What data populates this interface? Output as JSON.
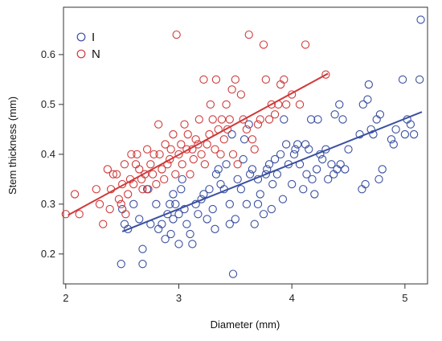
{
  "chart_data": {
    "type": "scatter",
    "xlabel": "Diameter (mm)",
    "ylabel": "Stem thickness (mm)",
    "xlim": [
      1.98,
      5.2
    ],
    "ylim": [
      0.14,
      0.695
    ],
    "xticks": [
      2,
      3,
      4,
      5
    ],
    "yticks": [
      0.2,
      0.3,
      0.4,
      0.5,
      0.6
    ],
    "yticks_labels": [
      "0.2",
      "0.3",
      "0.4",
      "0.5",
      "0.6"
    ],
    "grid": false,
    "legend": "top-left",
    "series": [
      {
        "name": "I",
        "color": "#3a4fa0",
        "marker": "open-circle",
        "trend": [
          [
            2.5,
            0.245
          ],
          [
            5.15,
            0.485
          ]
        ],
        "points": [
          [
            2.49,
            0.18
          ],
          [
            2.5,
            0.29
          ],
          [
            2.52,
            0.26
          ],
          [
            2.55,
            0.25
          ],
          [
            2.6,
            0.3
          ],
          [
            2.65,
            0.27
          ],
          [
            2.68,
            0.18
          ],
          [
            2.68,
            0.21
          ],
          [
            2.72,
            0.33
          ],
          [
            2.75,
            0.26
          ],
          [
            2.8,
            0.3
          ],
          [
            2.82,
            0.25
          ],
          [
            2.85,
            0.26
          ],
          [
            2.88,
            0.23
          ],
          [
            2.9,
            0.28
          ],
          [
            2.92,
            0.3
          ],
          [
            2.93,
            0.24
          ],
          [
            2.95,
            0.27
          ],
          [
            2.95,
            0.32
          ],
          [
            2.97,
            0.3
          ],
          [
            3.0,
            0.22
          ],
          [
            3.0,
            0.28
          ],
          [
            3.02,
            0.33
          ],
          [
            3.03,
            0.35
          ],
          [
            3.05,
            0.29
          ],
          [
            3.07,
            0.26
          ],
          [
            3.1,
            0.24
          ],
          [
            3.12,
            0.22
          ],
          [
            3.15,
            0.3
          ],
          [
            3.17,
            0.28
          ],
          [
            3.2,
            0.31
          ],
          [
            3.22,
            0.32
          ],
          [
            3.25,
            0.27
          ],
          [
            3.27,
            0.33
          ],
          [
            3.3,
            0.29
          ],
          [
            3.32,
            0.25
          ],
          [
            3.33,
            0.36
          ],
          [
            3.35,
            0.37
          ],
          [
            3.37,
            0.34
          ],
          [
            3.4,
            0.33
          ],
          [
            3.42,
            0.38
          ],
          [
            3.45,
            0.3
          ],
          [
            3.45,
            0.26
          ],
          [
            3.47,
            0.44
          ],
          [
            3.48,
            0.16
          ],
          [
            3.5,
            0.27
          ],
          [
            3.52,
            0.35
          ],
          [
            3.55,
            0.33
          ],
          [
            3.57,
            0.39
          ],
          [
            3.58,
            0.43
          ],
          [
            3.6,
            0.3
          ],
          [
            3.62,
            0.46
          ],
          [
            3.63,
            0.36
          ],
          [
            3.65,
            0.37
          ],
          [
            3.67,
            0.26
          ],
          [
            3.7,
            0.3
          ],
          [
            3.7,
            0.35
          ],
          [
            3.72,
            0.32
          ],
          [
            3.75,
            0.28
          ],
          [
            3.77,
            0.36
          ],
          [
            3.78,
            0.37
          ],
          [
            3.8,
            0.38
          ],
          [
            3.82,
            0.29
          ],
          [
            3.83,
            0.34
          ],
          [
            3.85,
            0.39
          ],
          [
            3.87,
            0.36
          ],
          [
            3.9,
            0.4
          ],
          [
            3.92,
            0.31
          ],
          [
            3.93,
            0.47
          ],
          [
            3.95,
            0.42
          ],
          [
            3.97,
            0.38
          ],
          [
            4.0,
            0.34
          ],
          [
            4.02,
            0.4
          ],
          [
            4.03,
            0.41
          ],
          [
            4.05,
            0.42
          ],
          [
            4.07,
            0.38
          ],
          [
            4.1,
            0.33
          ],
          [
            4.12,
            0.42
          ],
          [
            4.13,
            0.36
          ],
          [
            4.15,
            0.41
          ],
          [
            4.17,
            0.47
          ],
          [
            4.18,
            0.35
          ],
          [
            4.2,
            0.32
          ],
          [
            4.22,
            0.37
          ],
          [
            4.23,
            0.47
          ],
          [
            4.25,
            0.4
          ],
          [
            4.27,
            0.39
          ],
          [
            4.3,
            0.41
          ],
          [
            4.32,
            0.35
          ],
          [
            4.35,
            0.38
          ],
          [
            4.37,
            0.36
          ],
          [
            4.38,
            0.48
          ],
          [
            4.4,
            0.37
          ],
          [
            4.42,
            0.5
          ],
          [
            4.43,
            0.38
          ],
          [
            4.45,
            0.47
          ],
          [
            4.47,
            0.37
          ],
          [
            4.5,
            0.41
          ],
          [
            4.6,
            0.44
          ],
          [
            4.62,
            0.33
          ],
          [
            4.63,
            0.5
          ],
          [
            4.65,
            0.34
          ],
          [
            4.67,
            0.51
          ],
          [
            4.68,
            0.54
          ],
          [
            4.7,
            0.45
          ],
          [
            4.72,
            0.44
          ],
          [
            4.75,
            0.47
          ],
          [
            4.77,
            0.35
          ],
          [
            4.78,
            0.48
          ],
          [
            4.8,
            0.37
          ],
          [
            4.88,
            0.43
          ],
          [
            4.9,
            0.42
          ],
          [
            4.92,
            0.45
          ],
          [
            4.98,
            0.55
          ],
          [
            5.0,
            0.44
          ],
          [
            5.02,
            0.47
          ],
          [
            5.05,
            0.46
          ],
          [
            5.08,
            0.44
          ],
          [
            5.13,
            0.55
          ],
          [
            5.14,
            0.67
          ]
        ]
      },
      {
        "name": "N",
        "color": "#d03a3a",
        "marker": "open-circle",
        "trend": [
          [
            2.02,
            0.278
          ],
          [
            4.32,
            0.562
          ]
        ],
        "points": [
          [
            2.0,
            0.28
          ],
          [
            2.08,
            0.32
          ],
          [
            2.12,
            0.28
          ],
          [
            2.27,
            0.33
          ],
          [
            2.3,
            0.3
          ],
          [
            2.33,
            0.26
          ],
          [
            2.37,
            0.37
          ],
          [
            2.39,
            0.29
          ],
          [
            2.4,
            0.33
          ],
          [
            2.42,
            0.36
          ],
          [
            2.45,
            0.36
          ],
          [
            2.47,
            0.31
          ],
          [
            2.49,
            0.3
          ],
          [
            2.5,
            0.34
          ],
          [
            2.52,
            0.38
          ],
          [
            2.53,
            0.28
          ],
          [
            2.55,
            0.32
          ],
          [
            2.57,
            0.35
          ],
          [
            2.58,
            0.4
          ],
          [
            2.6,
            0.34
          ],
          [
            2.62,
            0.38
          ],
          [
            2.63,
            0.4
          ],
          [
            2.65,
            0.37
          ],
          [
            2.67,
            0.35
          ],
          [
            2.68,
            0.33
          ],
          [
            2.7,
            0.36
          ],
          [
            2.72,
            0.41
          ],
          [
            2.73,
            0.33
          ],
          [
            2.75,
            0.38
          ],
          [
            2.77,
            0.36
          ],
          [
            2.78,
            0.4
          ],
          [
            2.8,
            0.34
          ],
          [
            2.82,
            0.46
          ],
          [
            2.83,
            0.4
          ],
          [
            2.85,
            0.37
          ],
          [
            2.87,
            0.35
          ],
          [
            2.88,
            0.42
          ],
          [
            2.9,
            0.38
          ],
          [
            2.92,
            0.39
          ],
          [
            2.93,
            0.41
          ],
          [
            2.95,
            0.44
          ],
          [
            2.97,
            0.36
          ],
          [
            2.98,
            0.64
          ],
          [
            3.0,
            0.4
          ],
          [
            3.02,
            0.42
          ],
          [
            3.03,
            0.38
          ],
          [
            3.05,
            0.46
          ],
          [
            3.07,
            0.41
          ],
          [
            3.08,
            0.44
          ],
          [
            3.1,
            0.36
          ],
          [
            3.12,
            0.41
          ],
          [
            3.13,
            0.39
          ],
          [
            3.15,
            0.43
          ],
          [
            3.17,
            0.42
          ],
          [
            3.18,
            0.47
          ],
          [
            3.2,
            0.4
          ],
          [
            3.22,
            0.55
          ],
          [
            3.23,
            0.38
          ],
          [
            3.25,
            0.42
          ],
          [
            3.27,
            0.44
          ],
          [
            3.28,
            0.5
          ],
          [
            3.3,
            0.47
          ],
          [
            3.32,
            0.41
          ],
          [
            3.33,
            0.55
          ],
          [
            3.35,
            0.45
          ],
          [
            3.37,
            0.4
          ],
          [
            3.38,
            0.47
          ],
          [
            3.4,
            0.43
          ],
          [
            3.42,
            0.5
          ],
          [
            3.43,
            0.45
          ],
          [
            3.45,
            0.47
          ],
          [
            3.47,
            0.53
          ],
          [
            3.48,
            0.4
          ],
          [
            3.5,
            0.55
          ],
          [
            3.52,
            0.38
          ],
          [
            3.55,
            0.52
          ],
          [
            3.57,
            0.47
          ],
          [
            3.6,
            0.45
          ],
          [
            3.62,
            0.64
          ],
          [
            3.65,
            0.43
          ],
          [
            3.67,
            0.41
          ],
          [
            3.7,
            0.46
          ],
          [
            3.72,
            0.47
          ],
          [
            3.75,
            0.62
          ],
          [
            3.77,
            0.55
          ],
          [
            3.8,
            0.47
          ],
          [
            3.82,
            0.5
          ],
          [
            3.85,
            0.48
          ],
          [
            3.88,
            0.5
          ],
          [
            3.9,
            0.54
          ],
          [
            3.93,
            0.55
          ],
          [
            3.95,
            0.5
          ],
          [
            4.0,
            0.52
          ],
          [
            4.07,
            0.5
          ],
          [
            4.12,
            0.62
          ],
          [
            4.3,
            0.56
          ]
        ]
      }
    ]
  }
}
